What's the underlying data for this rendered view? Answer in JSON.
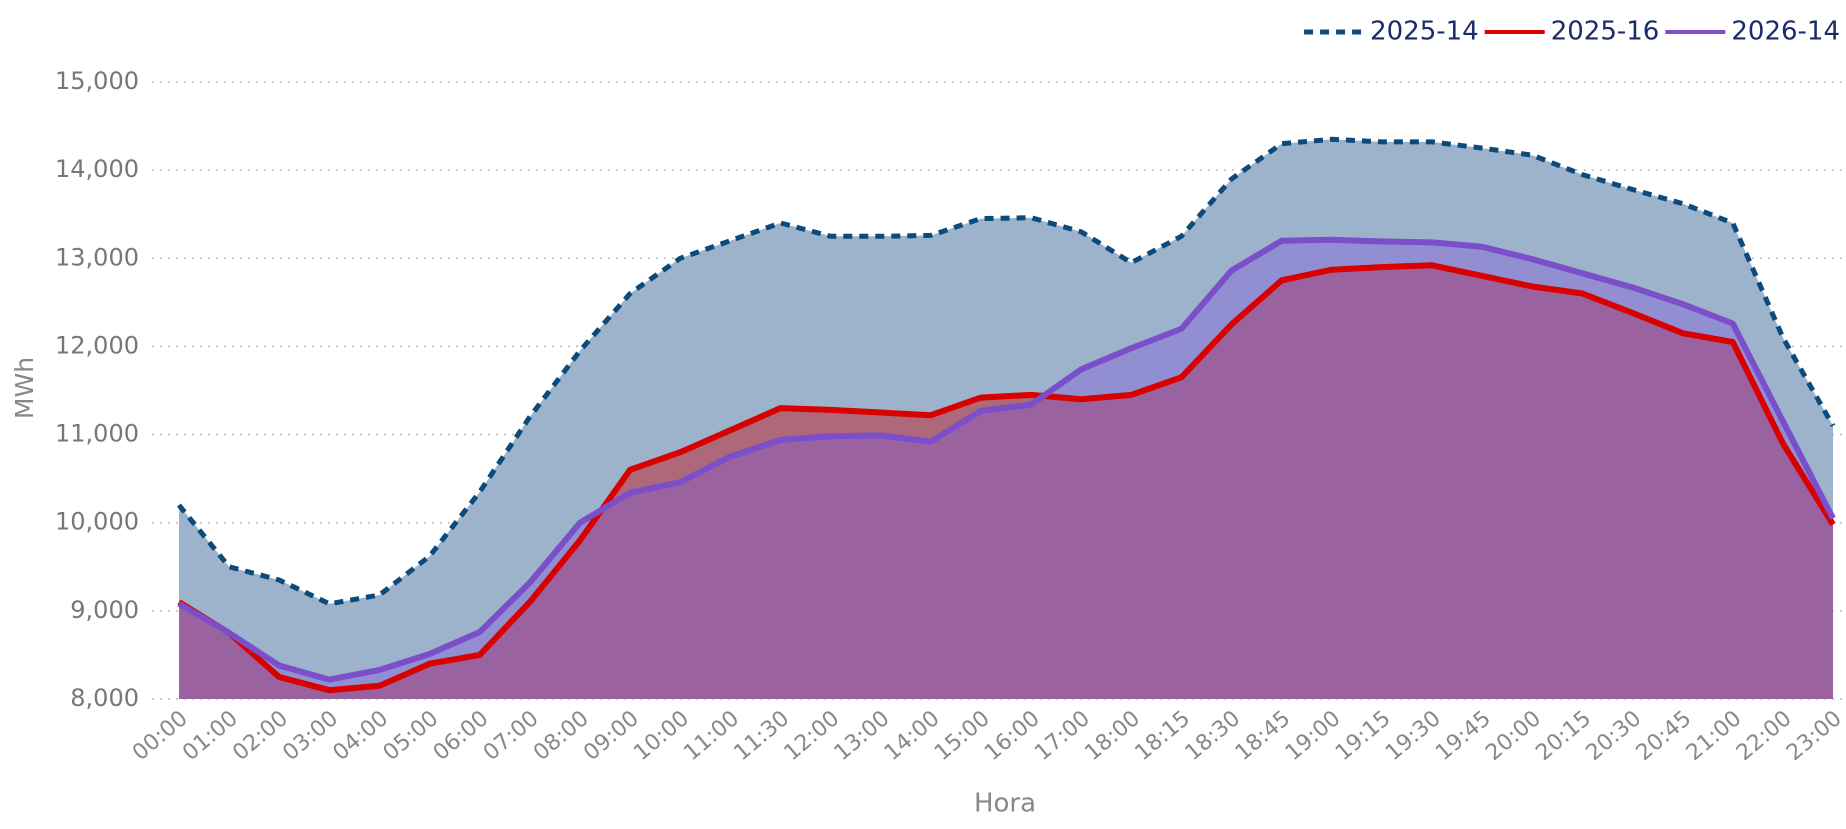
{
  "chart_data": {
    "type": "area",
    "x_label": "Hora",
    "y_label": "MWh",
    "categories": [
      "00:00",
      "01:00",
      "02:00",
      "03:00",
      "04:00",
      "05:00",
      "06:00",
      "07:00",
      "08:00",
      "09:00",
      "10:00",
      "11:00",
      "11:30",
      "12:00",
      "13:00",
      "14:00",
      "15:00",
      "16:00",
      "17:00",
      "18:00",
      "18:15",
      "18:30",
      "18:45",
      "19:00",
      "19:15",
      "19:30",
      "19:45",
      "20:00",
      "20:15",
      "20:30",
      "20:45",
      "21:00",
      "22:00",
      "23:00"
    ],
    "series": [
      {
        "name": "2025-14",
        "color": "#0b4a7a",
        "fill": "#9db3cb",
        "dashed": true,
        "values": [
          10200,
          9500,
          9350,
          9080,
          9180,
          9620,
          10350,
          11200,
          11950,
          12600,
          13000,
          13200,
          13400,
          13250,
          13250,
          13260,
          13450,
          13460,
          13300,
          12950,
          13250,
          13900,
          14300,
          14350,
          14320,
          14320,
          14250,
          14170,
          13950,
          13780,
          13620,
          13400,
          12100,
          11100
        ]
      },
      {
        "name": "2025-16",
        "color": "#d90000",
        "fill": "rgba(190,30,40,0.5)",
        "dashed": false,
        "values": [
          9100,
          8750,
          8250,
          8100,
          8150,
          8400,
          8500,
          9100,
          9800,
          10600,
          10800,
          11050,
          11300,
          11280,
          11250,
          11220,
          11420,
          11450,
          11400,
          11450,
          11650,
          12250,
          12750,
          12870,
          12900,
          12920,
          12800,
          12680,
          12600,
          12380,
          12150,
          12050,
          10900,
          9980
        ]
      },
      {
        "name": "2026-14",
        "color": "#7a4fc9",
        "fill": "rgba(128,90,220,0.4)",
        "dashed": false,
        "values": [
          9080,
          8750,
          8380,
          8220,
          8330,
          8510,
          8760,
          9320,
          10000,
          10340,
          10460,
          10750,
          10940,
          10980,
          10990,
          10920,
          11270,
          11340,
          11740,
          11980,
          12200,
          12860,
          13200,
          13210,
          13190,
          13180,
          13130,
          12990,
          12830,
          12670,
          12480,
          12260,
          11150,
          10050
        ]
      }
    ],
    "ylim": [
      8000,
      15000
    ],
    "yticks": [
      {
        "value": 8000,
        "label": "8,000"
      },
      {
        "value": 9000,
        "label": "9,000"
      },
      {
        "value": 10000,
        "label": "10,000"
      },
      {
        "value": 11000,
        "label": "11,000"
      },
      {
        "value": 12000,
        "label": "12,000"
      },
      {
        "value": 13000,
        "label": "13,000"
      },
      {
        "value": 14000,
        "label": "14,000"
      },
      {
        "value": 15000,
        "label": "15,000"
      }
    ],
    "grid": true,
    "legend": "top-right"
  }
}
